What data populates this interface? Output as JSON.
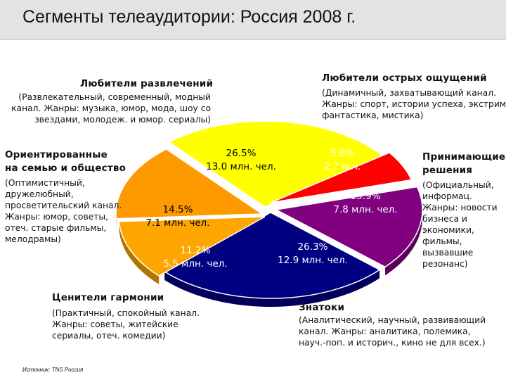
{
  "title": "Сегменты телеаудитории: Россия 2008 г.",
  "source": "Источник: TNS Россия",
  "segments": {
    "entertainment": {
      "name": "Любители развлечений",
      "desc_lines": [
        "(Развлекательный, современный, модный",
        "канал. Жанры: музыка, юмор, мода, шоу со",
        "звездами, молодеж. и юмор. сериалы)"
      ]
    },
    "thrill": {
      "name": "Любители острых ощущений",
      "desc_lines": [
        "(Динамичный, захватывающий канал.",
        "Жанры: спорт, истории успеха, экстрим,",
        "фантастика, мистика)"
      ]
    },
    "family": {
      "name_lines": [
        "Ориентированные",
        "на семью и общество"
      ],
      "desc_lines": [
        "(Оптимистичный,",
        "дружелюбный,",
        "просветительский канал.",
        "Жанры: юмор, советы,",
        "отеч. старые фильмы,",
        "мелодрамы)"
      ]
    },
    "decision": {
      "name_lines": [
        "Принимающие",
        "решения"
      ],
      "desc_lines": [
        "(Официальный,",
        "информац.",
        "Жанры: новости",
        "бизнеса и",
        "экономики,",
        "фильмы,",
        "вызвавшие",
        "резонанс)"
      ]
    },
    "harmony": {
      "name": "Ценители гармонии",
      "desc_lines": [
        "(Практичный, спокойный канал.",
        "Жанры: советы, житейские",
        "сериалы, отеч. комедии)"
      ]
    },
    "experts": {
      "name": "Знатоки",
      "desc_lines": [
        "(Аналитический, научный, развивающий",
        "канал. Жанры: аналитика, полемика,",
        "науч.-поп. и историч., кино не для всех.)"
      ]
    }
  },
  "chart_data": {
    "type": "pie",
    "title": "Сегменты телеаудитории: Россия 2008 г.",
    "slices": [
      {
        "name": "Любители развлечений",
        "percent": 26.5,
        "audience_mln": 13.0,
        "label1": "26.5%",
        "label2": "13.0 млн. чел.",
        "color": "#ffff00"
      },
      {
        "name": "Любители острых ощущений",
        "percent": 5.6,
        "audience_mln": 2.7,
        "label1": "5.6%",
        "label2": "2.7 м.ч.",
        "color": "#ff0000"
      },
      {
        "name": "Принимающие решения",
        "percent": 15.9,
        "audience_mln": 7.8,
        "label1": "15.9%",
        "label2": "7.8 млн. чел.",
        "color": "#800080"
      },
      {
        "name": "Знатоки",
        "percent": 26.3,
        "audience_mln": 12.9,
        "label1": "26.3%",
        "label2": "12.9 млн. чел.",
        "color": "#000080"
      },
      {
        "name": "Ценители гармонии",
        "percent": 11.2,
        "audience_mln": 5.5,
        "label1": "11.2%",
        "label2": "5.5 млн. чел.",
        "color": "#ffa500"
      },
      {
        "name": "Ориентированные на семью и общество",
        "percent": 14.5,
        "audience_mln": 7.1,
        "label1": "14.5%",
        "label2": "7.1 млн. чел.",
        "color": "#ff9900"
      }
    ]
  }
}
